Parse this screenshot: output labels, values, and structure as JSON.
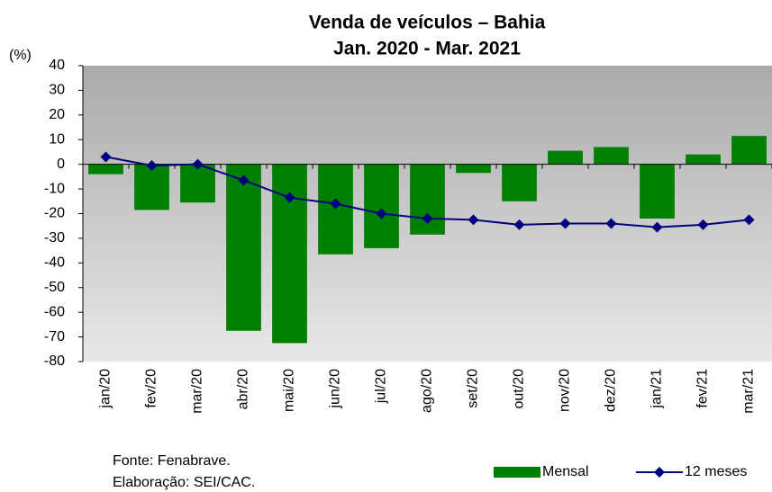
{
  "chart_data": {
    "type": "bar_line",
    "title": "Venda de veículos – Bahia",
    "subtitle": "Jan. 2020 - Mar. 2021",
    "y_label": "(%)",
    "notes": [
      "Fonte: Fenabrave.",
      "Elaboração: SEI/CAC."
    ],
    "categories": [
      "jan/20",
      "fev/20",
      "mar/20",
      "abr/20",
      "mai/20",
      "jun/20",
      "jul/20",
      "ago/20",
      "set/20",
      "out/20",
      "nov/20",
      "dez/20",
      "jan/21",
      "fev/21",
      "mar/21"
    ],
    "series": [
      {
        "name": "Mensal",
        "type": "bar",
        "color": "#008000",
        "values": [
          -4,
          -18.5,
          -15.5,
          -67.5,
          -72.5,
          -36.5,
          -34,
          -28.5,
          -3.5,
          -15,
          5.5,
          7,
          -22,
          4,
          11.5
        ]
      },
      {
        "name": "12 meses",
        "type": "line",
        "color": "#000080",
        "values": [
          3,
          -0.5,
          0,
          -6.5,
          -13.5,
          -16,
          -20,
          -22,
          -22.5,
          -24.5,
          -24,
          -24,
          -25.5,
          -24.5,
          -22.5
        ]
      }
    ],
    "ylim": [
      -80,
      40
    ],
    "yticks": [
      -80,
      -70,
      -60,
      -50,
      -40,
      -30,
      -20,
      -10,
      0,
      10,
      20,
      30,
      40
    ],
    "legend": "bottom-right"
  }
}
